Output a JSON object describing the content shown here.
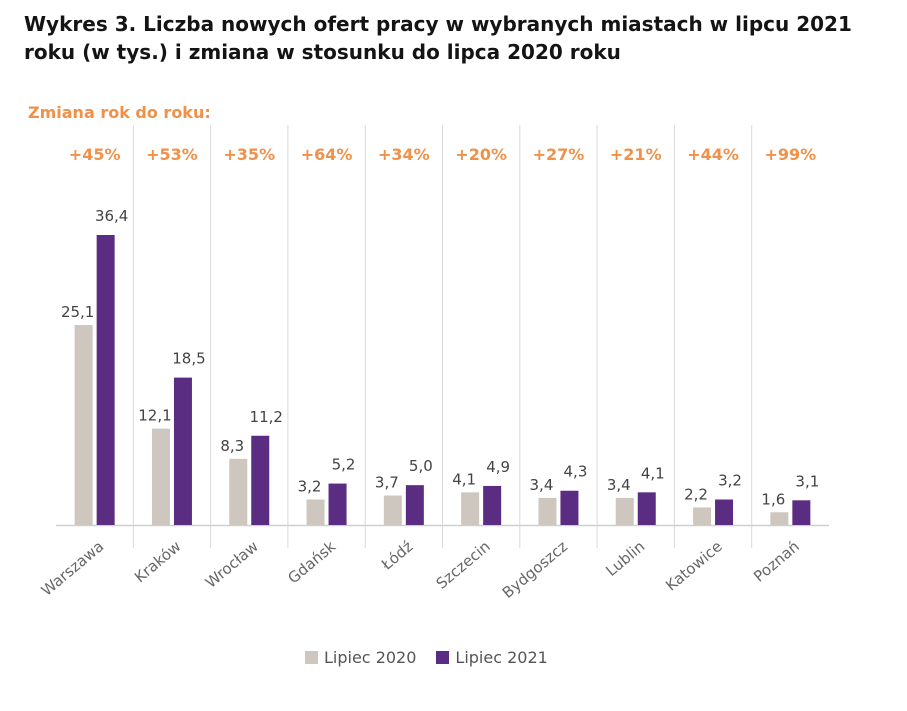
{
  "title": "Wykres 3. Liczba nowych ofert pracy w wybranych miastach w lipcu 2021 roku (w tys.) i zmiana w stosunku do lipca 2020 roku",
  "subtitle": "Zmiana rok do roku:",
  "colors": {
    "series_2020": "#cdc7c0",
    "series_2021": "#5a2d82",
    "change": "#f0914a"
  },
  "legend": {
    "s2020": "Lipiec 2020",
    "s2021": "Lipiec 2021"
  },
  "chart_data": {
    "type": "bar",
    "title": "Wykres 3. Liczba nowych ofert pracy w wybranych miastach w lipcu 2021 roku (w tys.) i zmiana w stosunku do lipca 2020 roku",
    "categories": [
      "Warszawa",
      "Kraków",
      "Wrocław",
      "Gdańsk",
      "Łódź",
      "Szczecin",
      "Bydgoszcz",
      "Lublin",
      "Katowice",
      "Poznań"
    ],
    "series": [
      {
        "name": "Lipiec 2020",
        "values": [
          25.1,
          12.1,
          8.3,
          3.2,
          3.7,
          4.1,
          3.4,
          3.4,
          2.2,
          1.6
        ],
        "labels": [
          "25,1",
          "12,1",
          "8,3",
          "3,2",
          "3,7",
          "4,1",
          "3,4",
          "3,4",
          "2,2",
          "1,6"
        ]
      },
      {
        "name": "Lipiec 2021",
        "values": [
          36.4,
          18.5,
          11.2,
          5.2,
          5.0,
          4.9,
          4.3,
          4.1,
          3.2,
          3.1
        ],
        "labels": [
          "36,4",
          "18,5",
          "11,2",
          "5,2",
          "5,0",
          "4,9",
          "4,3",
          "4,1",
          "3,2",
          "3,1"
        ]
      }
    ],
    "changes": [
      "+45%",
      "+53%",
      "+35%",
      "+64%",
      "+34%",
      "+20%",
      "+27%",
      "+21%",
      "+44%",
      "+99%"
    ],
    "xlabel": "",
    "ylabel": "",
    "ylim": [
      0,
      36.4
    ],
    "grid": false,
    "legend_position": "bottom"
  }
}
